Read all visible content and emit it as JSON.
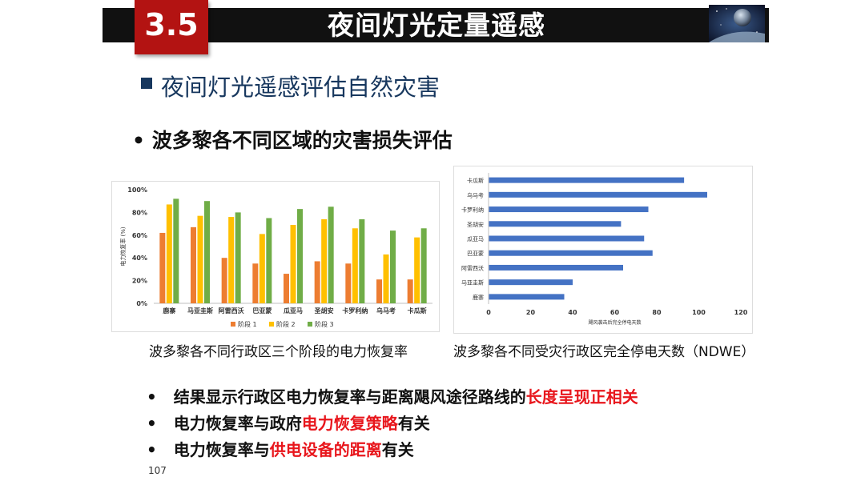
{
  "header": {
    "section_number": "3.5",
    "title": "夜间灯光定量遥感",
    "thumbnail_icon": "space-planet-image"
  },
  "heading": "夜间灯光遥感评估自然灾害",
  "subheading": "波多黎各不同区域的灾害损失评估",
  "bullet_symbol": "•",
  "charts": {
    "caption_left": "波多黎各不同行政区三个阶段的电力恢复率",
    "caption_right": "波多黎各不同受灾行政区完全停电天数（NDWE）"
  },
  "chart_data": [
    {
      "type": "bar",
      "categories": [
        "鹿寨",
        "马亚圭斯",
        "阿雷西沃",
        "巴亚蒙",
        "瓜亚马",
        "圣胡安",
        "卡罗利纳",
        "乌马考",
        "卡瓜斯"
      ],
      "series": [
        {
          "name": "阶段 1",
          "color": "#ed7d31",
          "values": [
            62,
            67,
            40,
            35,
            26,
            37,
            35,
            21,
            21
          ]
        },
        {
          "name": "阶段 2",
          "color": "#ffc000",
          "values": [
            87,
            77,
            76,
            61,
            69,
            74,
            66,
            43,
            58
          ]
        },
        {
          "name": "阶段 3",
          "color": "#70ad47",
          "values": [
            92,
            90,
            80,
            75,
            83,
            85,
            74,
            64,
            66
          ]
        }
      ],
      "ylabel": "电力恢复率 (%)",
      "yticks": [
        "0%",
        "20%",
        "40%",
        "60%",
        "80%",
        "100%"
      ],
      "ylim": [
        0,
        100
      ],
      "grid": false,
      "legend": "bottom"
    },
    {
      "type": "bar",
      "orientation": "horizontal",
      "categories": [
        "卡瓜斯",
        "乌马考",
        "卡罗利纳",
        "圣胡安",
        "瓜亚马",
        "巴亚蒙",
        "阿雷西沃",
        "马亚圭斯",
        "鹿寨"
      ],
      "values": [
        93,
        104,
        76,
        63,
        74,
        78,
        64,
        40,
        36
      ],
      "color": "#4472c4",
      "xlabel": "飓风袭击后完全停电天数",
      "xticks": [
        "0",
        "20",
        "40",
        "60",
        "80",
        "100",
        "120"
      ],
      "xlim": [
        0,
        120
      ],
      "grid": false
    }
  ],
  "points": [
    {
      "pre": "结果显示行政区电力恢复率与距离飓风途径路线的",
      "highlight": "长度呈现正相关",
      "post": ""
    },
    {
      "pre": "电力恢复率与政府",
      "highlight": "电力恢复策略",
      "post": "有关"
    },
    {
      "pre": "电力恢复率与",
      "highlight": "供电设备的距离",
      "post": "有关"
    }
  ],
  "page_number": "107",
  "colors": {
    "section_box": "#b31312",
    "heading": "#17375e",
    "highlight": "#e8161c",
    "bar_blue": "#4472c4"
  }
}
